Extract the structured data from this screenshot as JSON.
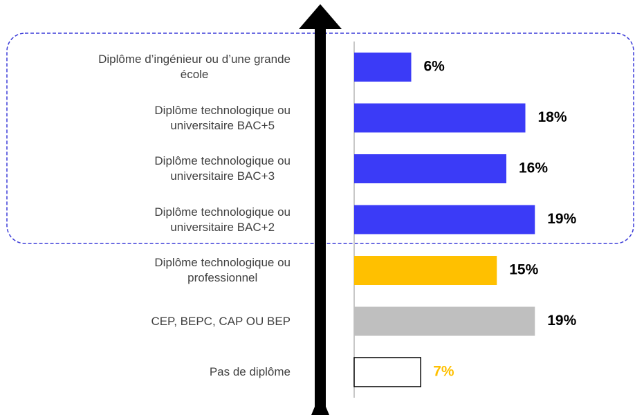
{
  "chart_data": {
    "type": "barh",
    "categories": [
      "Diplôme d’ingénieur ou d’une grande\nécole",
      "Diplôme technologique ou\nuniversitaire BAC+5",
      "Diplôme technologique ou\nuniversitaire BAC+3",
      "Diplôme technologique ou\nuniversitaire BAC+2",
      "Diplôme technologique ou\nprofessionnel",
      "CEP, BEPC, CAP OU BEP",
      "Pas de diplôme"
    ],
    "values": [
      6,
      18,
      16,
      19,
      15,
      19,
      7
    ],
    "value_labels": [
      "6%",
      "18%",
      "16%",
      "19%",
      "15%",
      "19%",
      "7%"
    ],
    "colors": [
      "#3b3bf7",
      "#3b3bf7",
      "#3b3bf7",
      "#3b3bf7",
      "#ffc000",
      "#bfbfbf",
      "#ffffff"
    ],
    "edge_colors": [
      null,
      null,
      null,
      null,
      null,
      null,
      "#000000"
    ],
    "label_colors": [
      "#000000",
      "#000000",
      "#000000",
      "#000000",
      "#000000",
      "#000000",
      "#ffc000"
    ],
    "xlim": [
      0,
      20
    ]
  }
}
